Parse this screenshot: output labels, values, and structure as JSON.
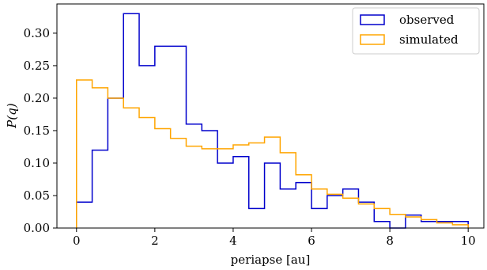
{
  "chart_data": {
    "type": "step-histogram",
    "title": "",
    "xlabel": "periapse [au]",
    "ylabel": "P(q)",
    "xlim": [
      -0.5,
      10.4
    ],
    "ylim": [
      0,
      0.345
    ],
    "xticks": [
      0,
      2,
      4,
      6,
      8,
      10
    ],
    "yticks": [
      0.0,
      0.05,
      0.1,
      0.15,
      0.2,
      0.25,
      0.3
    ],
    "xtick_labels": [
      "0",
      "2",
      "4",
      "6",
      "8",
      "10"
    ],
    "ytick_labels": [
      "0.00",
      "0.05",
      "0.10",
      "0.15",
      "0.20",
      "0.25",
      "0.30"
    ],
    "grid": false,
    "legend_position": "top-right",
    "series": [
      {
        "name": "observed",
        "color": "#0000cc",
        "bin_edges": [
          0,
          0.4,
          0.8,
          1.2,
          1.6,
          2.0,
          2.4,
          2.8,
          3.2,
          3.6,
          4.0,
          4.4,
          4.8,
          5.2,
          5.6,
          6.0,
          6.4,
          6.8,
          7.2,
          7.6,
          8.0,
          8.4,
          8.8,
          9.2,
          9.6,
          10.0
        ],
        "values": [
          0.04,
          0.12,
          0.2,
          0.33,
          0.25,
          0.28,
          0.28,
          0.16,
          0.15,
          0.1,
          0.11,
          0.03,
          0.1,
          0.06,
          0.07,
          0.03,
          0.05,
          0.06,
          0.04,
          0.01,
          0.0,
          0.02,
          0.01,
          0.01,
          0.01
        ]
      },
      {
        "name": "simulated",
        "color": "#ffa500",
        "bin_edges": [
          0,
          0.4,
          0.8,
          1.2,
          1.6,
          2.0,
          2.4,
          2.8,
          3.2,
          3.6,
          4.0,
          4.4,
          4.8,
          5.2,
          5.6,
          6.0,
          6.4,
          6.8,
          7.2,
          7.6,
          8.0,
          8.4,
          8.8,
          9.2,
          9.6,
          10.0
        ],
        "values": [
          0.228,
          0.216,
          0.2,
          0.185,
          0.17,
          0.153,
          0.138,
          0.126,
          0.122,
          0.122,
          0.128,
          0.131,
          0.14,
          0.116,
          0.082,
          0.06,
          0.052,
          0.046,
          0.037,
          0.03,
          0.021,
          0.017,
          0.013,
          0.008,
          0.005
        ]
      }
    ]
  }
}
